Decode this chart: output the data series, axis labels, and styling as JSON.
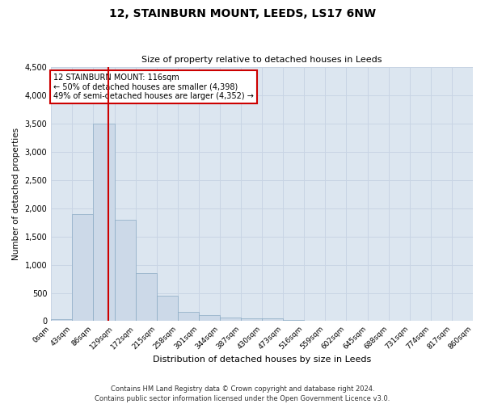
{
  "title": "12, STAINBURN MOUNT, LEEDS, LS17 6NW",
  "subtitle": "Size of property relative to detached houses in Leeds",
  "xlabel": "Distribution of detached houses by size in Leeds",
  "ylabel": "Number of detached properties",
  "bin_edges": [
    0,
    43,
    86,
    129,
    172,
    215,
    258,
    301,
    344,
    387,
    430,
    473,
    516,
    559,
    602,
    645,
    688,
    731,
    774,
    817,
    860
  ],
  "bar_heights": [
    30,
    1900,
    3500,
    1800,
    850,
    450,
    165,
    100,
    65,
    55,
    50,
    15,
    10,
    8,
    5,
    4,
    3,
    2,
    2,
    1
  ],
  "bar_color": "#ccd9e8",
  "bar_edge_color": "#8aaac4",
  "property_size": 116,
  "vline_color": "#cc0000",
  "annotation_text": "12 STAINBURN MOUNT: 116sqm\n← 50% of detached houses are smaller (4,398)\n49% of semi-detached houses are larger (4,352) →",
  "annotation_box_color": "#ffffff",
  "annotation_box_edge": "#cc0000",
  "ylim": [
    0,
    4500
  ],
  "yticks": [
    0,
    500,
    1000,
    1500,
    2000,
    2500,
    3000,
    3500,
    4000,
    4500
  ],
  "footer": "Contains HM Land Registry data © Crown copyright and database right 2024.\nContains public sector information licensed under the Open Government Licence v3.0.",
  "grid_color": "#c8d4e4",
  "background_color": "#dce6f0"
}
